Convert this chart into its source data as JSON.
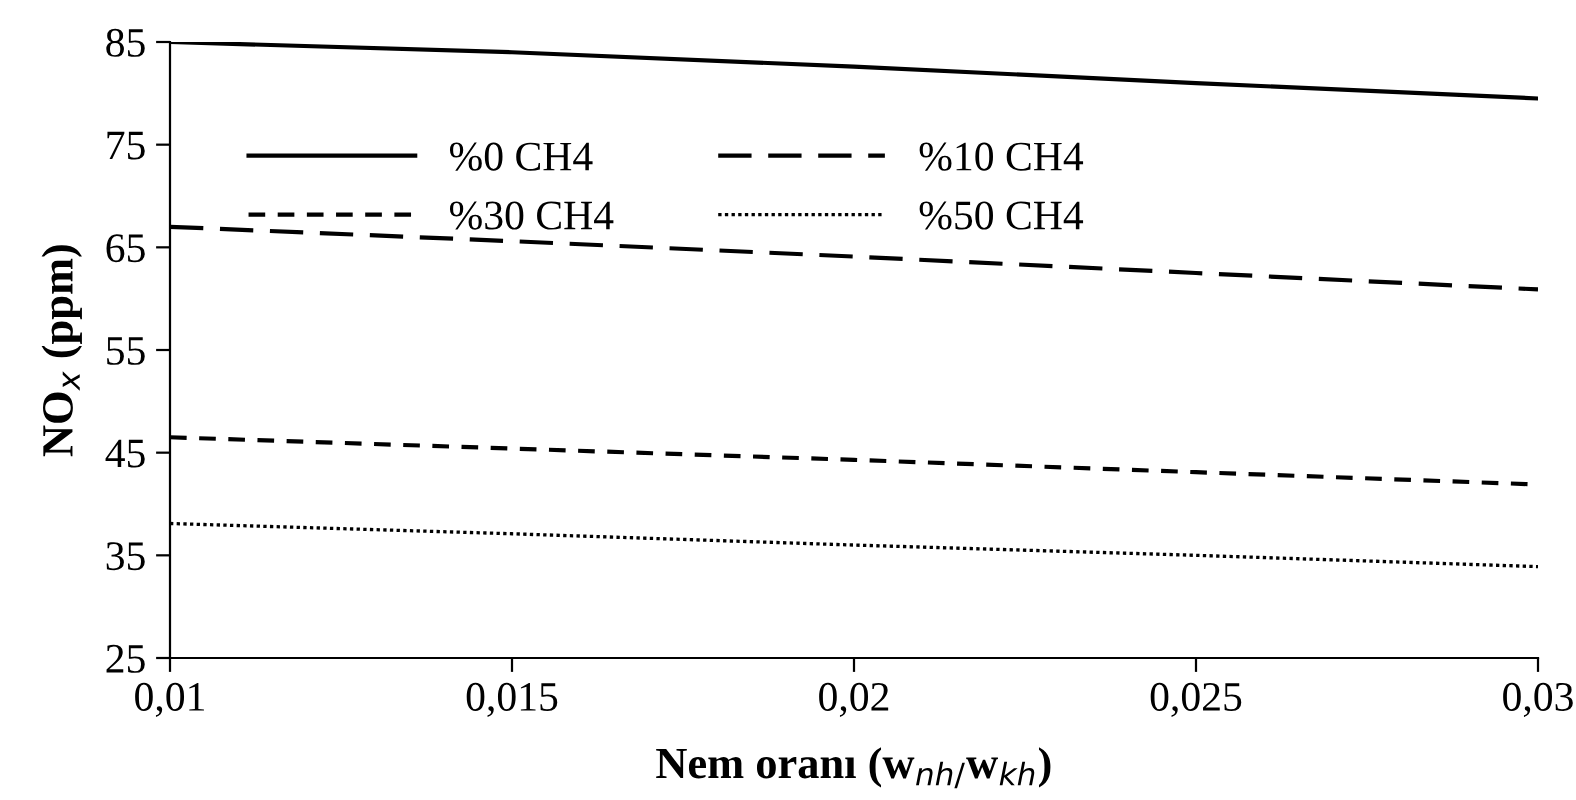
{
  "chart_data": {
    "type": "line",
    "xlabel": "Nem oranı (w$_{nh/}$w$_{kh}$)",
    "ylabel": "NO$_{x}$ (ppm)",
    "x": [
      0.01,
      0.015,
      0.02,
      0.025,
      0.03
    ],
    "series": [
      {
        "name": "%0 CH4",
        "color": "#000000",
        "line_style": "solid",
        "values": [
          85.0,
          84.0,
          82.6,
          81.0,
          79.5
        ]
      },
      {
        "name": "%10 CH4",
        "color": "#000000",
        "line_style": "dashed",
        "values": [
          67.0,
          65.6,
          64.1,
          62.5,
          60.9
        ]
      },
      {
        "name": "%30 CH4",
        "color": "#000000",
        "line_style": "dashed",
        "values": [
          46.5,
          45.4,
          44.3,
          43.1,
          41.9
        ]
      },
      {
        "name": "%50 CH4",
        "color": "#000000",
        "line_style": "dotted",
        "values": [
          38.1,
          37.1,
          36.0,
          35.0,
          33.9
        ]
      }
    ],
    "xlim": [
      0.01,
      0.03
    ],
    "xticks": [
      {
        "value": 0.01,
        "label": "0,01"
      },
      {
        "value": 0.015,
        "label": "0,015"
      },
      {
        "value": 0.02,
        "label": "0,02"
      },
      {
        "value": 0.025,
        "label": "0,025"
      },
      {
        "value": 0.03,
        "label": "0,03"
      }
    ],
    "ylim": [
      25,
      85
    ],
    "yticks": [
      25,
      35,
      45,
      55,
      65,
      75,
      85
    ],
    "grid": false,
    "legend": "top left",
    "marker": "none"
  }
}
